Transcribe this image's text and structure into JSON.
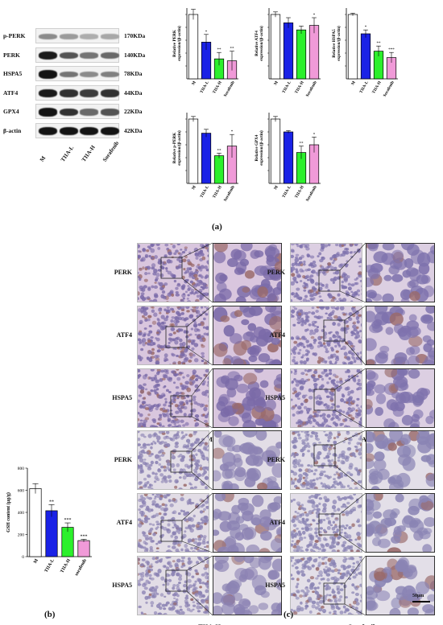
{
  "panel_a": {
    "letter": "(a)",
    "blot": {
      "rows": [
        {
          "protein": "p-PERK",
          "mw": "170KDa",
          "intensity": [
            0.45,
            0.38,
            0.3,
            0.32
          ]
        },
        {
          "protein": "PERK",
          "mw": "140KDa",
          "intensity": [
            0.95,
            0.7,
            0.55,
            0.6
          ]
        },
        {
          "protein": "HSPA5",
          "mw": "78KDa",
          "intensity": [
            0.98,
            0.55,
            0.45,
            0.5
          ]
        },
        {
          "protein": "ATF4",
          "mw": "44KDa",
          "intensity": [
            0.95,
            0.85,
            0.8,
            0.85
          ]
        },
        {
          "protein": "GPX4",
          "mw": "22KDa",
          "intensity": [
            0.98,
            0.85,
            0.6,
            0.7
          ]
        },
        {
          "protein": "β-actin",
          "mw": "42KDa",
          "intensity": [
            0.98,
            0.98,
            0.98,
            0.98
          ]
        }
      ],
      "lanes": [
        "M",
        "TIIA-L",
        "TIIA-H",
        "Sorafenib"
      ]
    }
  },
  "colors": {
    "M": "#ffffff",
    "TIIA-L": "#1a22e6",
    "TIIA-H": "#2cf02c",
    "Sorafenib": "#f09ad8",
    "grey_M_bar": "#ffffff",
    "grey_L_bar": "#2a2a2a"
  },
  "chart_data": [
    {
      "type": "bar",
      "ylabel": "Relative PERK expression/(β-actin)",
      "categories": [
        "M",
        "TIIA-L",
        "TIIA-H",
        "Sorafenib"
      ],
      "values": [
        1.0,
        0.57,
        0.31,
        0.28
      ],
      "errors": [
        0.08,
        0.12,
        0.1,
        0.15
      ],
      "sig": [
        "",
        "*",
        "**",
        "**"
      ],
      "ylim": [
        0,
        1.1
      ]
    },
    {
      "type": "bar",
      "ylabel": "Relative ATF4 expression/(β-actin)",
      "categories": [
        "M",
        "TIIA-L",
        "TIIA-H",
        "Sorafenib"
      ],
      "values": [
        1.0,
        0.87,
        0.76,
        0.83
      ],
      "errors": [
        0.04,
        0.08,
        0.06,
        0.12
      ],
      "sig": [
        "",
        "",
        "",
        "*"
      ],
      "ylim": [
        0,
        1.1
      ]
    },
    {
      "type": "bar",
      "ylabel": "Relative HSPA5 expression/(β-actin)",
      "categories": [
        "M",
        "TIIA-L",
        "TIIA-H",
        "Sorafenib"
      ],
      "values": [
        1.0,
        0.7,
        0.43,
        0.33
      ],
      "errors": [
        0.02,
        0.06,
        0.08,
        0.08
      ],
      "sig": [
        "",
        "*",
        "**",
        "***"
      ],
      "ylim": [
        0,
        1.1
      ]
    },
    {
      "type": "bar",
      "ylabel": "Relative p-PERK expression/(β-actin)",
      "categories": [
        "M",
        "TIIA-L",
        "TIIA-H",
        "Sorafenib"
      ],
      "values": [
        1.0,
        0.78,
        0.43,
        0.58
      ],
      "errors": [
        0.04,
        0.06,
        0.04,
        0.18
      ],
      "sig": [
        "",
        "",
        "**",
        "*"
      ],
      "ylim": [
        0,
        1.1
      ]
    },
    {
      "type": "bar",
      "ylabel": "Relative GPX4 expression/(β-actin)",
      "categories": [
        "M",
        "TIIA-L",
        "TIIA-H",
        "Sorafenib"
      ],
      "values": [
        1.0,
        0.8,
        0.48,
        0.6
      ],
      "errors": [
        0.04,
        0.02,
        0.1,
        0.12
      ],
      "sig": [
        "",
        "",
        "**",
        "*"
      ],
      "ylim": [
        0,
        1.1
      ]
    },
    {
      "type": "bar",
      "ylabel": "GSH content (μg/g)",
      "categories": [
        "M",
        "TIIA-L",
        "TIIA-H",
        "sorafenib"
      ],
      "values": [
        615,
        415,
        265,
        145
      ],
      "errors": [
        45,
        55,
        40,
        12
      ],
      "sig": [
        "",
        "**",
        "***",
        "***"
      ],
      "ylim": [
        0,
        800
      ],
      "yticks": [
        0,
        200,
        400,
        600,
        800
      ]
    }
  ],
  "panel_b": {
    "letter": "(b)"
  },
  "panel_c": {
    "letter": "(c)",
    "rows": [
      "PERK",
      "ATF4",
      "HSPA5"
    ],
    "groups": [
      "M",
      "TIIA-L",
      "TIIA-H",
      "Sorafenib"
    ],
    "scale_bar": "50μm"
  }
}
